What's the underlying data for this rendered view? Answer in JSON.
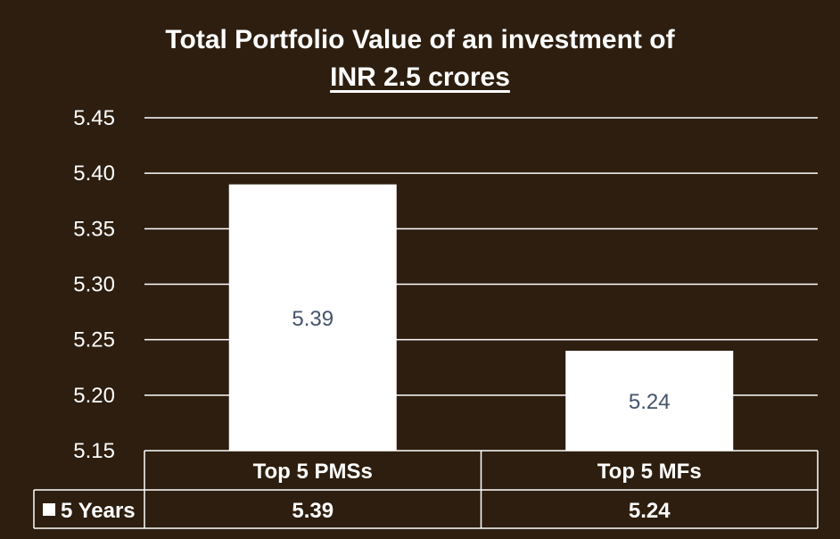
{
  "colors": {
    "background": "#2d1e0f",
    "bar": "#ffffff",
    "bar_label": "#44546a",
    "text": "#ffffff",
    "grid": "#ffffff"
  },
  "chart_data": {
    "type": "bar",
    "title": "Total Portfolio Value of an investment of",
    "subtitle": "INR 2.5 crores",
    "categories": [
      "Top 5 PMSs",
      "Top 5 MFs"
    ],
    "series": [
      {
        "name": "5 Years",
        "values": [
          5.39,
          5.24
        ]
      }
    ],
    "value_labels": [
      "5.39",
      "5.24"
    ],
    "ylim": [
      5.15,
      5.45
    ],
    "yticks": [
      "5.15",
      "5.20",
      "5.25",
      "5.30",
      "5.35",
      "5.40",
      "5.45"
    ],
    "grid": true,
    "legend": "data-table",
    "data_table": {
      "legend_label": "5 Years",
      "values": [
        "5.39",
        "5.24"
      ]
    }
  }
}
